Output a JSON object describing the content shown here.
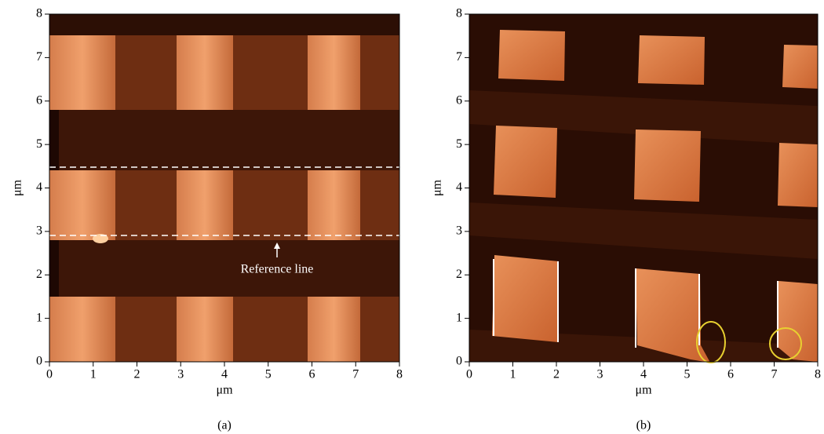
{
  "chart_data": [
    {
      "type": "image",
      "caption": "(a)",
      "xlabel": "μm",
      "ylabel": "μm",
      "xlim": [
        0,
        8
      ],
      "ylim": [
        0,
        8
      ],
      "xticks": [
        0,
        1,
        2,
        3,
        4,
        5,
        6,
        7,
        8
      ],
      "yticks": [
        0,
        1,
        2,
        3,
        4,
        5,
        6,
        7,
        8
      ],
      "annotation": "Reference line"
    },
    {
      "type": "image",
      "caption": "(b)",
      "xlabel": "μm",
      "ylabel": "μm",
      "xlim": [
        0,
        8
      ],
      "ylim": [
        0,
        8
      ],
      "xticks": [
        0,
        1,
        2,
        3,
        4,
        5,
        6,
        7,
        8
      ],
      "yticks": [
        0,
        1,
        2,
        3,
        4,
        5,
        6,
        7,
        8
      ]
    }
  ]
}
